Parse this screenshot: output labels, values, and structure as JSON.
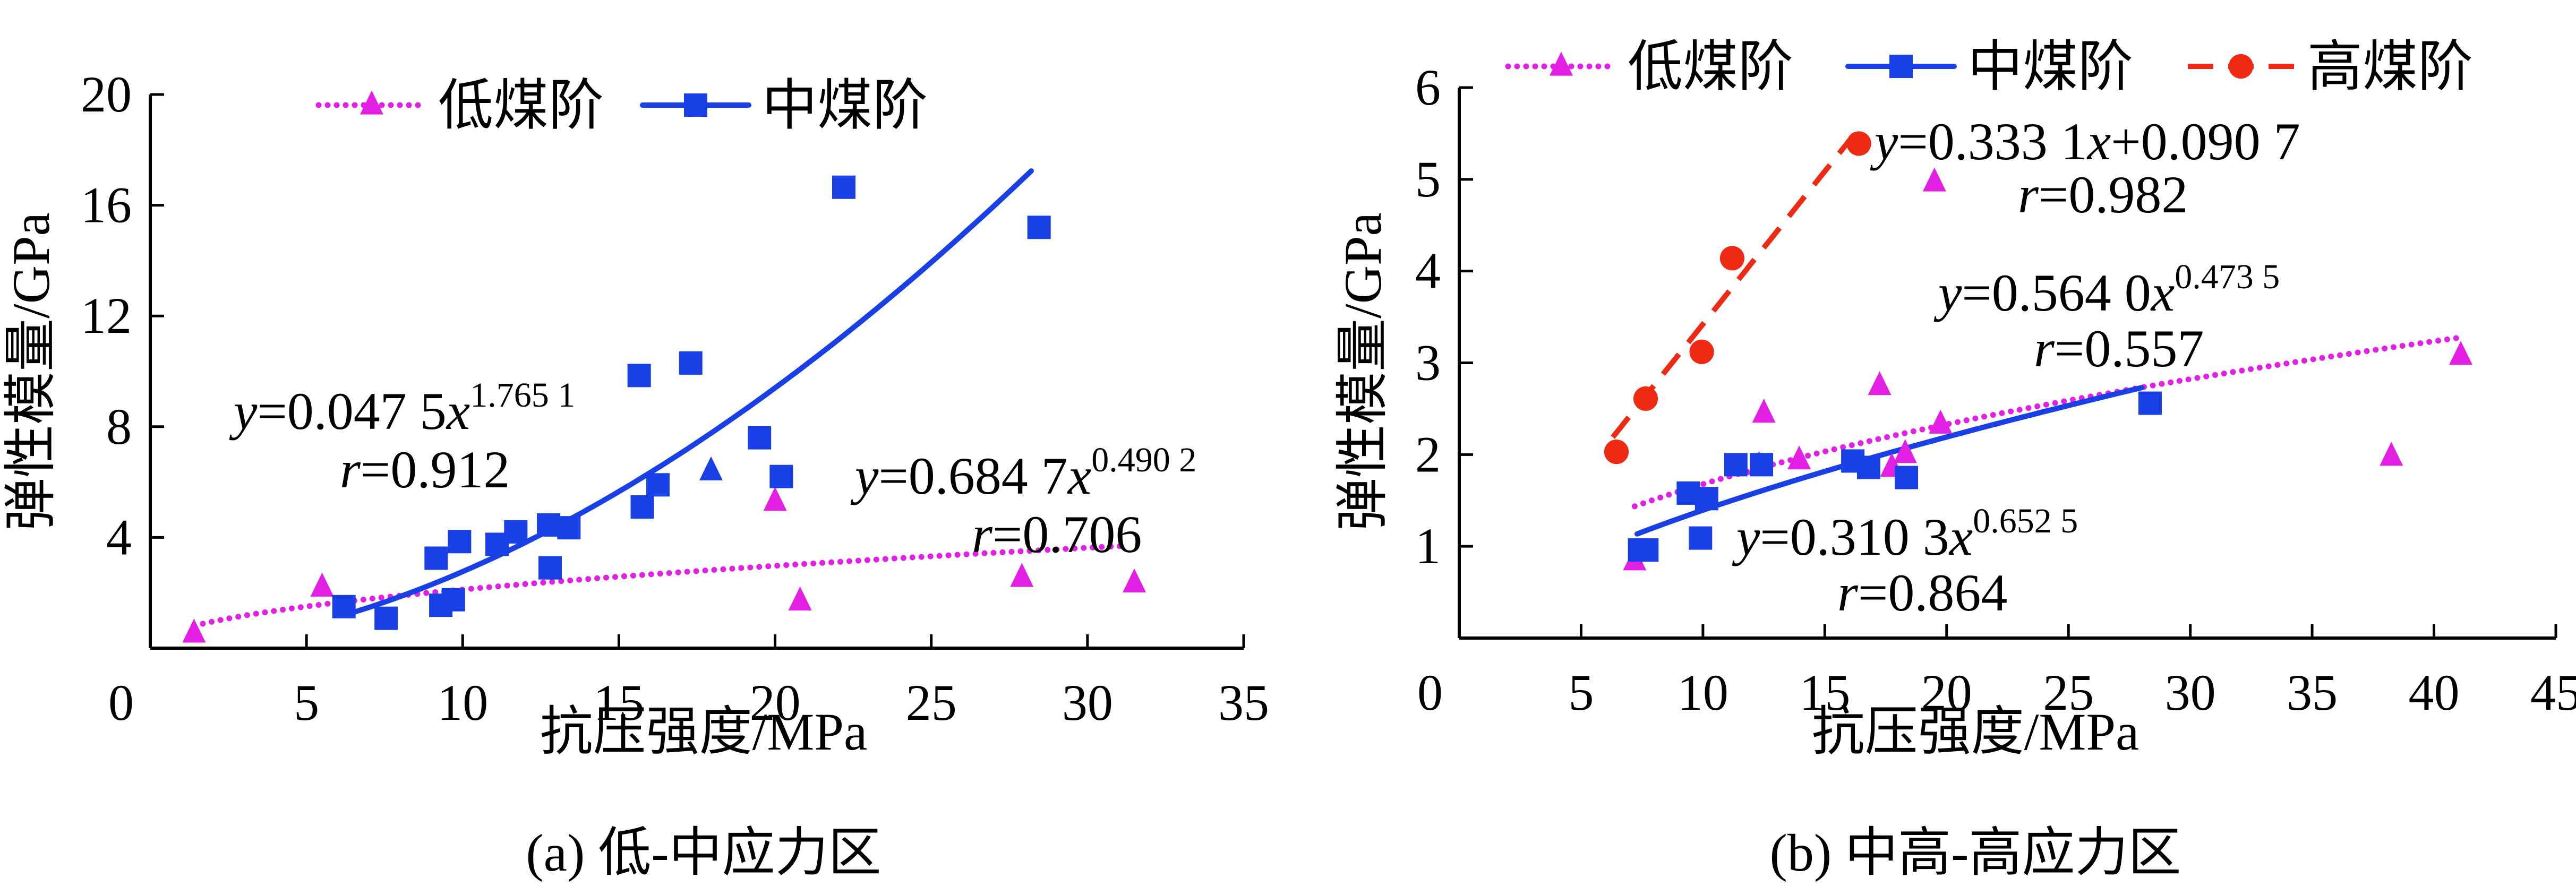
{
  "figure": {
    "panels_count": 2
  },
  "colors": {
    "low_rank": "#E31FE3",
    "mid_rank": "#1840E6",
    "high_rank": "#EE2A14",
    "axis": "#000000"
  },
  "chart_data": [
    {
      "type": "scatter",
      "id": "a",
      "caption": "(a)  低-中应力区",
      "xlabel": "抗压强度/MPa",
      "ylabel": "弹性模量/GPa",
      "xlim": [
        0,
        35
      ],
      "ylim": [
        0,
        20
      ],
      "xticks": [
        0,
        5,
        10,
        15,
        20,
        25,
        30,
        35
      ],
      "yticks": [
        4,
        8,
        12,
        16,
        20
      ],
      "xtick_labels": [
        "0",
        "5",
        "10",
        "15",
        "20",
        "25",
        "30",
        "35"
      ],
      "ytick_labels": [
        "4",
        "8",
        "12",
        "16",
        "20"
      ],
      "grid": false,
      "legend_position": "top",
      "legend": [
        {
          "label": "低煤阶",
          "series": "low"
        },
        {
          "label": "中煤阶",
          "series": "mid"
        }
      ],
      "series": [
        {
          "name": "低煤阶",
          "key": "low",
          "marker": "triangle",
          "line": "dotted",
          "points": [
            [
              1.4,
              0.54
            ],
            [
              5.5,
              2.2
            ],
            [
              20.0,
              5.3
            ],
            [
              20.8,
              1.7
            ],
            [
              27.9,
              2.55
            ],
            [
              31.5,
              2.35
            ]
          ],
          "fit": {
            "kind": "power",
            "a": 0.6847,
            "b": 0.4902,
            "x_range": [
              1.4,
              31.2
            ]
          },
          "equation": {
            "prefix": "y",
            "body": "=0.684 7",
            "var": "x",
            "sup": "0.490 2"
          },
          "r_text": {
            "var": "r",
            "body": "=0.706"
          }
        },
        {
          "name": "中煤阶",
          "key": "mid",
          "marker": "square",
          "line": "solid",
          "points": [
            [
              6.2,
              1.5
            ],
            [
              7.55,
              1.08
            ],
            [
              9.15,
              3.25
            ],
            [
              9.3,
              1.55
            ],
            [
              9.7,
              1.75
            ],
            [
              9.9,
              3.85
            ],
            [
              11.1,
              3.75
            ],
            [
              11.7,
              4.2
            ],
            [
              12.75,
              4.45
            ],
            [
              12.8,
              2.9
            ],
            [
              13.4,
              4.35
            ],
            [
              15.65,
              9.85
            ],
            [
              15.75,
              5.1
            ],
            [
              16.25,
              5.9
            ],
            [
              17.3,
              10.3
            ],
            [
              19.5,
              7.6
            ],
            [
              20.2,
              6.2
            ],
            [
              22.2,
              16.65
            ],
            [
              28.45,
              15.2
            ]
          ],
          "fit": {
            "kind": "power",
            "a": 0.0475,
            "b": 1.7651,
            "x_range": [
              6.2,
              28.2
            ]
          },
          "equation": {
            "prefix": "y",
            "body": "=0.047 5",
            "var": "x",
            "sup": "1.765 1"
          },
          "r_text": {
            "var": "r",
            "body": "=0.912"
          }
        },
        {
          "name": "低煤阶 (蓝色标记)",
          "key": "low_blue",
          "marker": "triangle",
          "line": "none",
          "color": "#1840E6",
          "points": [
            [
              17.95,
              6.4
            ]
          ]
        }
      ]
    },
    {
      "type": "scatter",
      "id": "b",
      "caption": "(b)  中高-高应力区",
      "xlabel": "抗压强度/MPa",
      "ylabel": "弹性模量/GPa",
      "xlim": [
        0,
        45
      ],
      "ylim": [
        0,
        6
      ],
      "xticks": [
        0,
        5,
        10,
        15,
        20,
        25,
        30,
        35,
        40,
        45
      ],
      "yticks": [
        1,
        2,
        3,
        4,
        5,
        6
      ],
      "xtick_labels": [
        "0",
        "5",
        "10",
        "15",
        "20",
        "25",
        "30",
        "35",
        "40",
        "45"
      ],
      "ytick_labels": [
        "1",
        "2",
        "3",
        "4",
        "5",
        "6"
      ],
      "grid": false,
      "legend_position": "top",
      "legend": [
        {
          "label": "低煤阶",
          "series": "low"
        },
        {
          "label": "中煤阶",
          "series": "mid"
        },
        {
          "label": "高煤阶",
          "series": "high"
        }
      ],
      "series": [
        {
          "name": "低煤阶",
          "key": "low",
          "marker": "triangle",
          "line": "dotted",
          "points": [
            [
              7.2,
              0.84
            ],
            [
              12.3,
              1.88
            ],
            [
              12.5,
              2.45
            ],
            [
              13.95,
              1.94
            ],
            [
              17.25,
              2.75
            ],
            [
              17.75,
              1.86
            ],
            [
              18.3,
              2.01
            ],
            [
              19.5,
              4.97
            ],
            [
              19.75,
              2.33
            ],
            [
              38.25,
              1.98
            ],
            [
              41.1,
              3.08
            ]
          ],
          "fit": {
            "kind": "power",
            "a": 0.564,
            "b": 0.4735,
            "x_range": [
              7.2,
              41.1
            ]
          },
          "equation": {
            "prefix": "y",
            "body": "=0.564 0",
            "var": "x",
            "sup": "0.473 5"
          },
          "r_text": {
            "var": "r",
            "body": "=0.557"
          }
        },
        {
          "name": "中煤阶",
          "key": "mid",
          "marker": "square",
          "line": "solid",
          "points": [
            [
              7.4,
              0.96
            ],
            [
              7.7,
              0.96
            ],
            [
              9.4,
              1.58
            ],
            [
              9.9,
              1.09
            ],
            [
              10.15,
              1.52
            ],
            [
              11.35,
              1.89
            ],
            [
              12.4,
              1.89
            ],
            [
              16.15,
              1.93
            ],
            [
              16.8,
              1.86
            ],
            [
              18.35,
              1.75
            ],
            [
              28.35,
              2.56
            ]
          ],
          "fit": {
            "kind": "power",
            "a": 0.3103,
            "b": 0.6525,
            "x_range": [
              7.3,
              28.0
            ]
          },
          "equation": {
            "prefix": "y",
            "body": "=0.310 3",
            "var": "x",
            "sup": "0.652 5"
          },
          "r_text": {
            "var": "r",
            "body": "=0.864"
          }
        },
        {
          "name": "高煤阶",
          "key": "high",
          "marker": "circle",
          "line": "dashed",
          "points": [
            [
              6.45,
              2.03
            ],
            [
              7.65,
              2.61
            ],
            [
              9.95,
              3.12
            ],
            [
              11.2,
              4.14
            ],
            [
              16.4,
              5.39
            ]
          ],
          "fit": {
            "kind": "linear",
            "a": 0.3331,
            "b": 0.0907,
            "x_range": [
              6.3,
              16.2
            ]
          },
          "equation": {
            "prefix": "y",
            "body": "=0.333 1",
            "var": "x",
            "tail": "+0.090 7"
          },
          "r_text": {
            "var": "r",
            "body": "=0.982"
          }
        }
      ]
    }
  ]
}
